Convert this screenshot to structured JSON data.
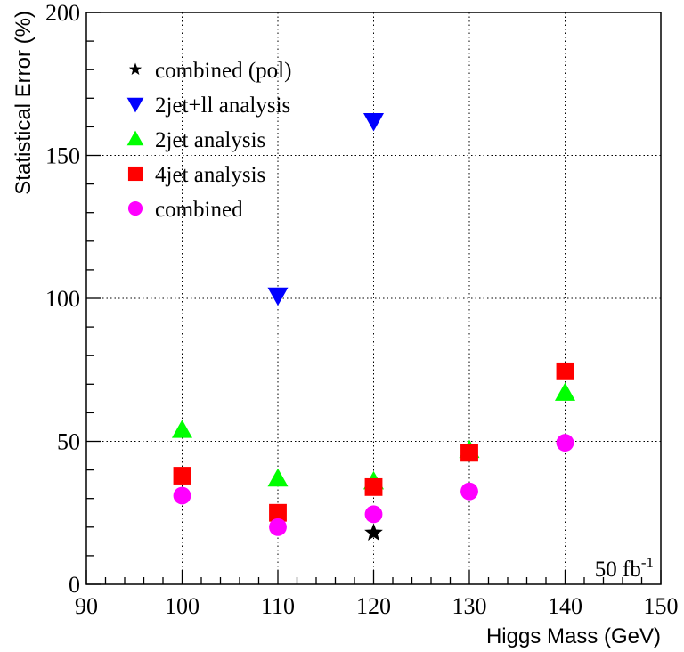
{
  "chart_data": {
    "type": "scatter",
    "xlabel": "Higgs Mass (GeV)",
    "ylabel": "Statistical Error (%)",
    "xlim": [
      90,
      150
    ],
    "ylim": [
      0,
      200
    ],
    "xticks": [
      90,
      100,
      110,
      120,
      130,
      140,
      150
    ],
    "yticks": [
      0,
      50,
      100,
      150,
      200
    ],
    "grid": true,
    "legend_position": "top-left",
    "annotation": {
      "base": "50 fb",
      "superscript": "-1"
    },
    "series": [
      {
        "name": "combined (pol)",
        "marker": "star",
        "color": "#000000",
        "points": [
          [
            120,
            18
          ]
        ]
      },
      {
        "name": "2jet+ll analysis",
        "marker": "triangle-down",
        "color": "#0000ff",
        "points": [
          [
            110,
            101
          ],
          [
            120,
            162
          ]
        ]
      },
      {
        "name": "2jet analysis",
        "marker": "triangle-up",
        "color": "#00ff00",
        "points": [
          [
            100,
            54
          ],
          [
            110,
            37
          ],
          [
            120,
            36
          ],
          [
            130,
            47
          ],
          [
            140,
            67
          ]
        ]
      },
      {
        "name": "4jet analysis",
        "marker": "square",
        "color": "#ff0000",
        "points": [
          [
            100,
            38
          ],
          [
            110,
            25
          ],
          [
            120,
            34
          ],
          [
            130,
            46
          ],
          [
            140,
            74.5
          ]
        ]
      },
      {
        "name": "combined",
        "marker": "circle",
        "color": "#ff00ff",
        "points": [
          [
            100,
            31
          ],
          [
            110,
            20
          ],
          [
            120,
            24.5
          ],
          [
            130,
            32.5
          ],
          [
            140,
            49.5
          ]
        ]
      }
    ]
  }
}
